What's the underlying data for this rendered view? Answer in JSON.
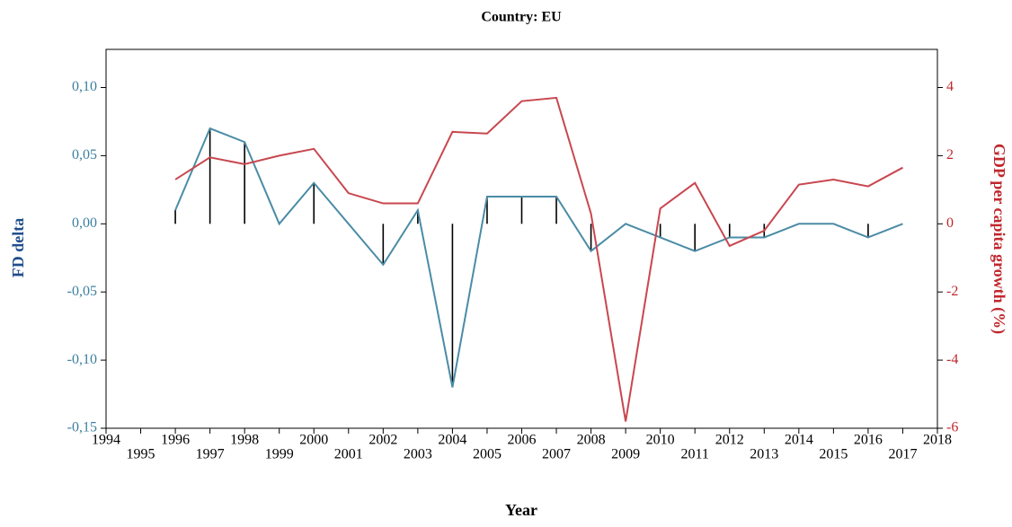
{
  "chart_data": {
    "type": "line",
    "title": "Country: EU",
    "xlabel": "Year",
    "ylabel": "FD delta",
    "y2label": "GDP per capita growth (%)",
    "x": [
      1996,
      1997,
      1998,
      1999,
      2000,
      2001,
      2002,
      2003,
      2004,
      2005,
      2006,
      2007,
      2008,
      2009,
      2010,
      2011,
      2012,
      2013,
      2014,
      2015,
      2016,
      2017
    ],
    "series": [
      {
        "name": "FD delta",
        "color": "#4a8ca6",
        "values": [
          0.01,
          0.07,
          0.06,
          0,
          0.03,
          0,
          -0.03,
          0.01,
          -0.12,
          0.02,
          0.02,
          0.02,
          -0.02,
          0,
          -0.01,
          -0.02,
          -0.01,
          -0.01,
          0,
          0,
          -0.01,
          0
        ]
      },
      {
        "name": "GDP per capita growth (%)",
        "color": "#c8474f",
        "axis": "y2",
        "values": [
          1.3,
          1.95,
          1.75,
          2.0,
          2.2,
          0.9,
          0.6,
          0.6,
          2.7,
          2.65,
          3.6,
          3.7,
          0.3,
          -5.8,
          0.45,
          1.2,
          -0.65,
          -0.2,
          1.15,
          1.3,
          1.1,
          1.65
        ]
      }
    ],
    "xlim": [
      1994,
      2018
    ],
    "xticks": [
      1994,
      1995,
      1996,
      1997,
      1998,
      1999,
      2000,
      2001,
      2002,
      2003,
      2004,
      2005,
      2006,
      2007,
      2008,
      2009,
      2010,
      2011,
      2012,
      2013,
      2014,
      2015,
      2016,
      2017,
      2018
    ],
    "ylim": [
      -0.15,
      0.128
    ],
    "yticks": [
      {
        "value": -0.15,
        "label": "-0,15"
      },
      {
        "value": -0.1,
        "label": "-0,10"
      },
      {
        "value": -0.05,
        "label": "-0,05"
      },
      {
        "value": 0,
        "label": "0,00"
      },
      {
        "value": 0.05,
        "label": "0,05"
      },
      {
        "value": 0.1,
        "label": "0,10"
      }
    ],
    "y2lim": [
      -6,
      5.12
    ],
    "y2ticks": [
      -6,
      -4,
      -2,
      0,
      2,
      4
    ],
    "drop_lines": true
  }
}
